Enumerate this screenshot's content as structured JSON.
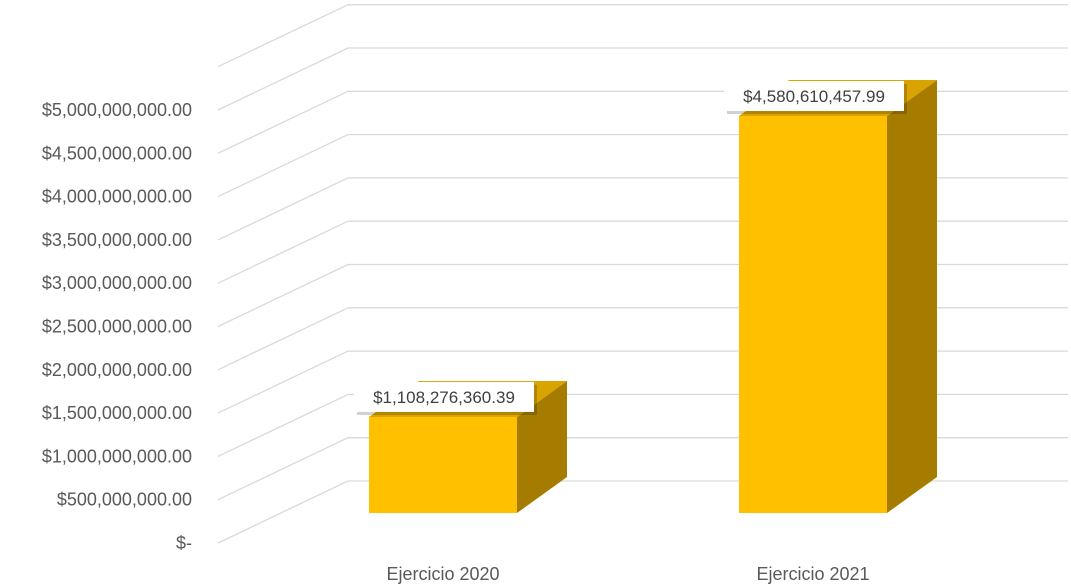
{
  "chart_data": {
    "type": "bar",
    "style": "3d-column",
    "title": "",
    "xlabel": "",
    "ylabel": "",
    "categories": [
      "Ejercicio 2020",
      "Ejercicio 2021"
    ],
    "series": [
      {
        "values": [
          1108276360.39,
          4580610457.99
        ],
        "color": "#FFC000"
      }
    ],
    "data_labels": [
      "$1,108,276,360.39",
      "$4,580,610,457.99"
    ],
    "ylim": [
      0,
      5500000000
    ],
    "yticks": [
      0,
      500000000,
      1000000000,
      1500000000,
      2000000000,
      2500000000,
      3000000000,
      3500000000,
      4000000000,
      4500000000,
      5000000000
    ],
    "ytick_labels": [
      "$-",
      "$500,000,000.00",
      "$1,000,000,000.00",
      "$1,500,000,000.00",
      "$2,000,000,000.00",
      "$2,500,000,000.00",
      "$3,000,000,000.00",
      "$3,500,000,000.00",
      "$4,000,000,000.00",
      "$4,500,000,000.00",
      "$5,000,000,000.00"
    ],
    "grid": true,
    "legend": "none",
    "colors": {
      "bar_front": "#FFC000",
      "bar_side": "#A67C00",
      "bar_top": "#D9A300",
      "grid": "#D9D9D9",
      "text": "#595959"
    }
  }
}
